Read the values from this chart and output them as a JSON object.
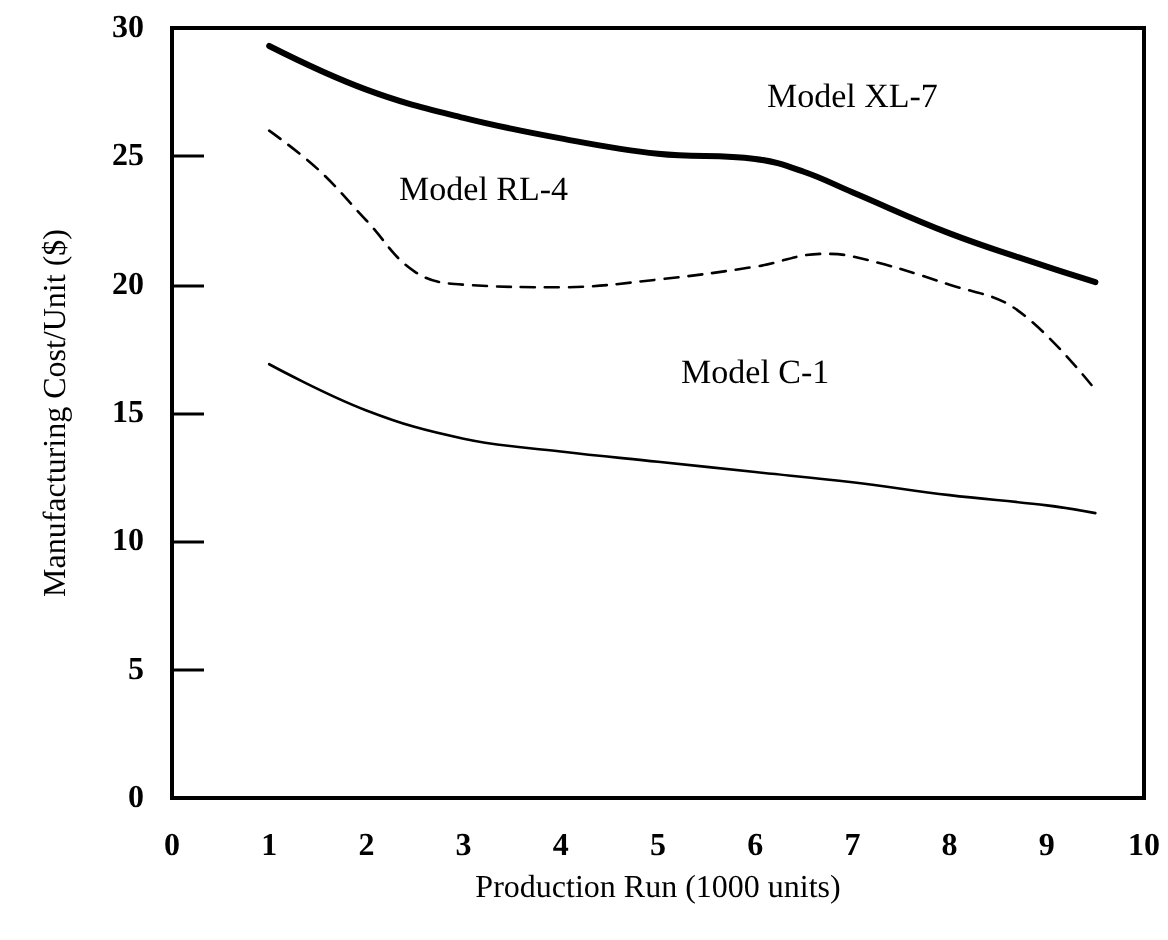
{
  "chart_data": {
    "type": "line",
    "xlabel": "Production Run (1000 units)",
    "ylabel": "Manufacturing Cost/Unit ($)",
    "xlim": [
      0,
      10
    ],
    "xticks": [
      0,
      1,
      2,
      3,
      4,
      5,
      6,
      7,
      8,
      9,
      10
    ],
    "ylim": [
      0,
      30
    ],
    "yticks": [
      0,
      5,
      10,
      15,
      20,
      25,
      30
    ],
    "grid": false,
    "legend": false,
    "marker": "none",
    "series": [
      {
        "name": "Model XL-7",
        "color": "#000000",
        "line_style": "solid",
        "x": [
          1,
          2,
          3,
          4,
          5,
          6,
          6.5,
          7,
          8,
          9,
          9.5
        ],
        "values": [
          29.3,
          27.6,
          26.5,
          25.7,
          25.1,
          24.9,
          24.4,
          23.6,
          22.0,
          20.7,
          20.1
        ]
      },
      {
        "name": "Model RL-4",
        "color": "#000000",
        "line_style": "dashed",
        "x": [
          1,
          1.5,
          2,
          2.5,
          3,
          4,
          5,
          6,
          6.7,
          7,
          8,
          8.7,
          9.5
        ],
        "values": [
          26.0,
          24.5,
          22.5,
          20.5,
          20.0,
          19.9,
          20.2,
          20.7,
          21.2,
          21.1,
          20.0,
          19.0,
          15.9
        ]
      },
      {
        "name": "Model C-1",
        "color": "#000000",
        "line_style": "solid",
        "x": [
          1,
          2,
          3,
          4,
          5,
          6,
          7,
          8,
          9,
          9.5
        ],
        "values": [
          16.9,
          15.1,
          14.0,
          13.5,
          13.1,
          12.7,
          12.3,
          11.8,
          11.4,
          11.1
        ]
      }
    ]
  }
}
